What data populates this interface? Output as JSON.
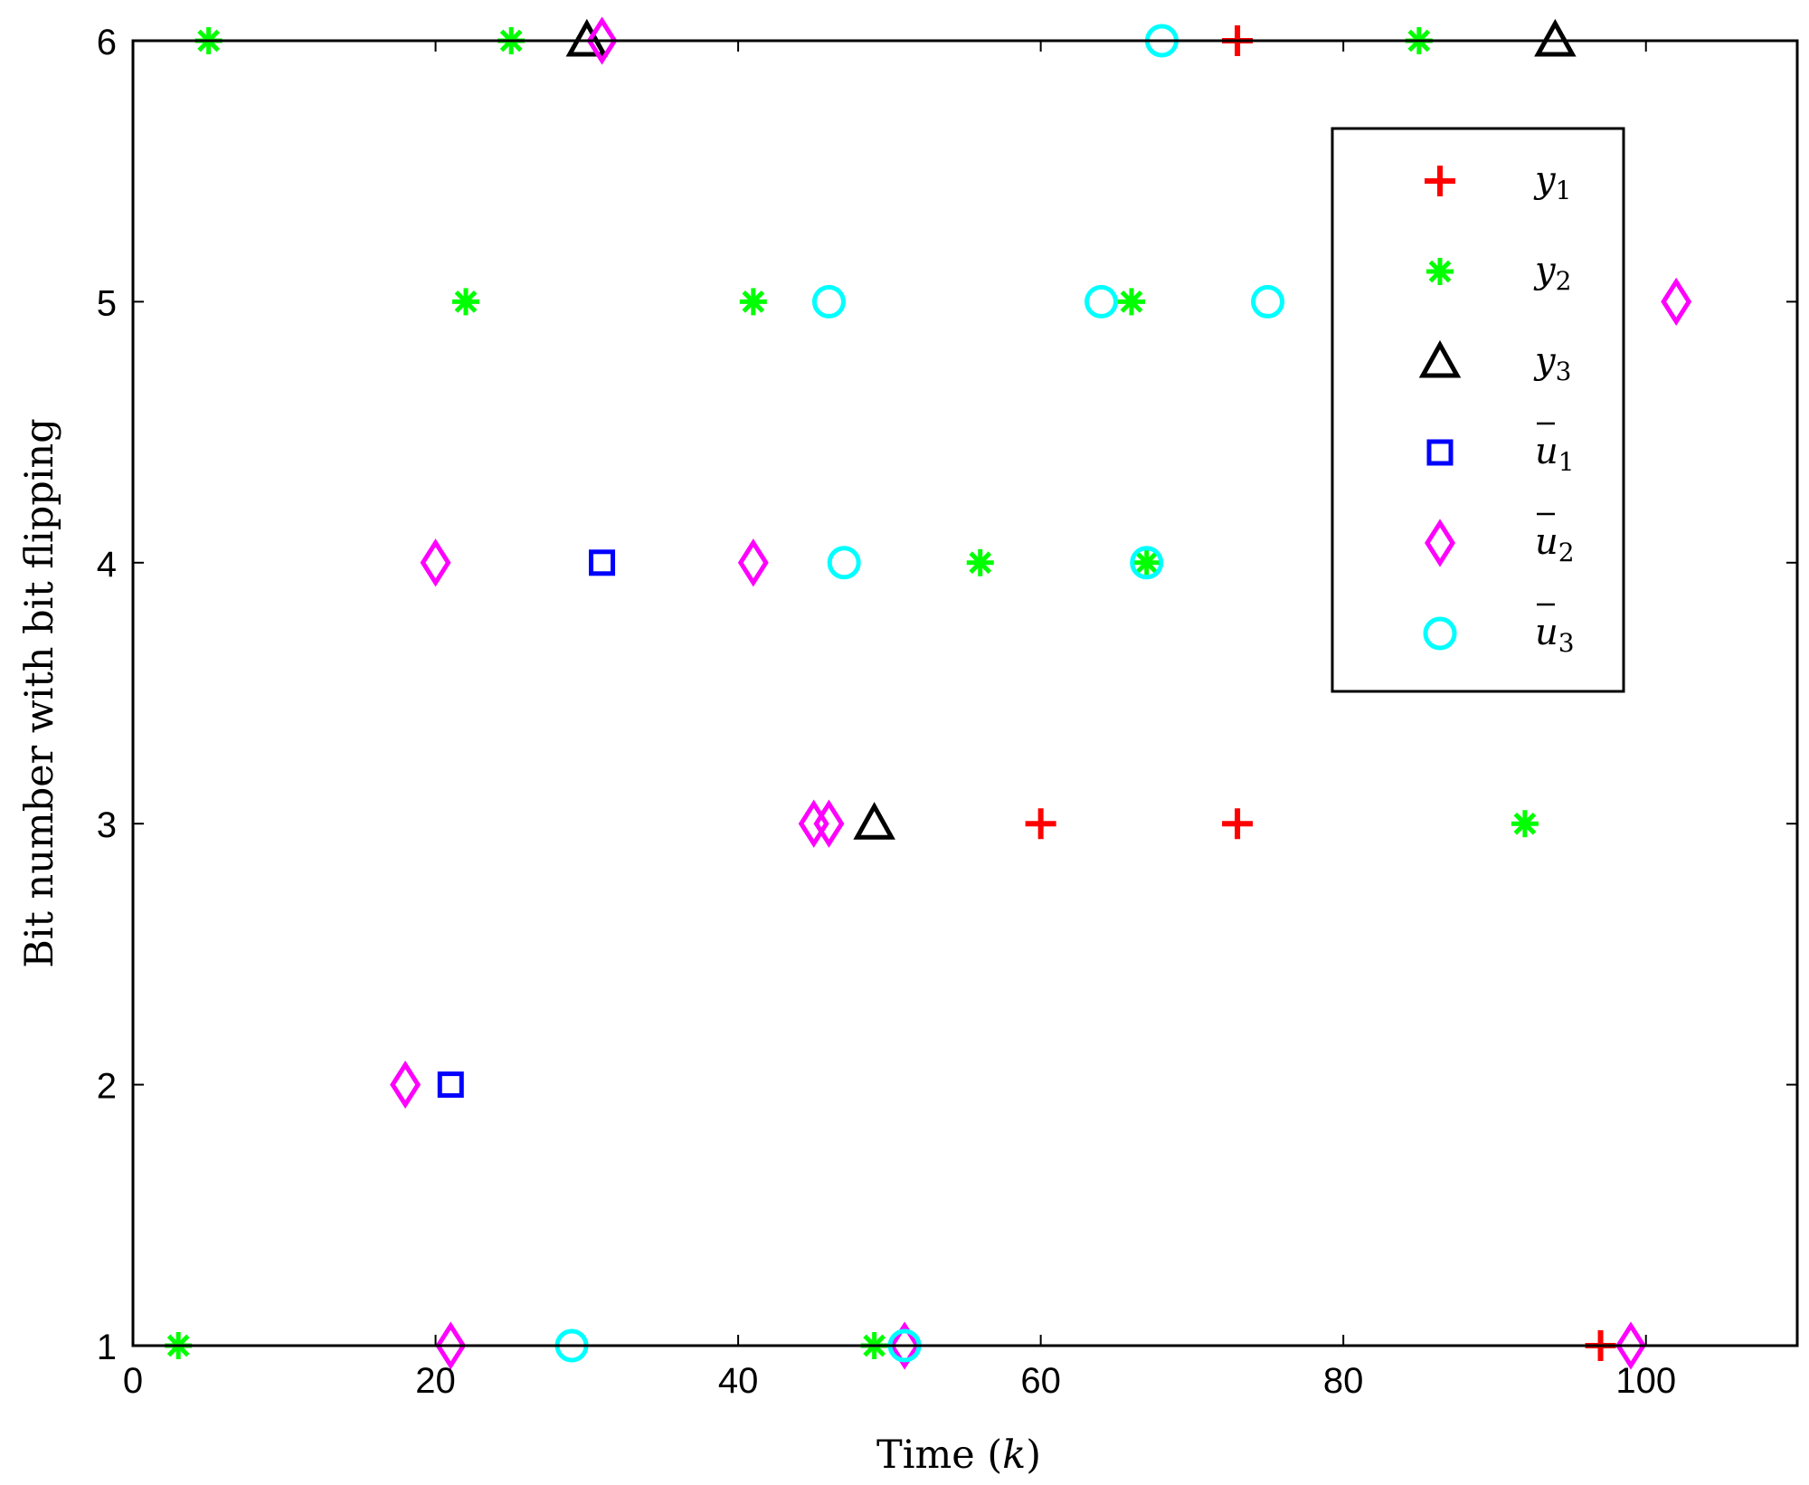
{
  "chart_data": {
    "type": "scatter",
    "xlabel": "Time",
    "xlabel_var": "k",
    "ylabel": "Bit number with bit flipping",
    "xlim": [
      0,
      110
    ],
    "ylim": [
      1,
      6
    ],
    "x_ticks": [
      0,
      20,
      40,
      60,
      80,
      100
    ],
    "y_ticks": [
      1,
      2,
      3,
      4,
      5,
      6
    ],
    "grid": false,
    "legend_position": "top-right",
    "series": [
      {
        "name": "y1",
        "label_main": "y",
        "label_sub": "1",
        "bar": false,
        "marker": "plus",
        "color": "#ff0000",
        "points": [
          [
            73,
            6
          ],
          [
            60,
            3
          ],
          [
            73,
            3
          ],
          [
            97,
            1
          ]
        ]
      },
      {
        "name": "y2",
        "label_main": "y",
        "label_sub": "2",
        "bar": false,
        "marker": "asterisk",
        "color": "#00ff00",
        "points": [
          [
            5,
            6
          ],
          [
            25,
            6
          ],
          [
            85,
            6
          ],
          [
            22,
            5
          ],
          [
            41,
            5
          ],
          [
            66,
            5
          ],
          [
            56,
            4
          ],
          [
            67,
            4
          ],
          [
            92,
            3
          ],
          [
            3,
            1
          ],
          [
            49,
            1
          ]
        ]
      },
      {
        "name": "y3",
        "label_main": "y",
        "label_sub": "3",
        "bar": false,
        "marker": "triangle",
        "color": "#000000",
        "points": [
          [
            30,
            6
          ],
          [
            94,
            6
          ],
          [
            49,
            3
          ]
        ]
      },
      {
        "name": "u1",
        "label_main": "u",
        "label_sub": "1",
        "bar": true,
        "marker": "square",
        "color": "#0000ff",
        "points": [
          [
            31,
            4
          ],
          [
            21,
            2
          ]
        ]
      },
      {
        "name": "u2",
        "label_main": "u",
        "label_sub": "2",
        "bar": true,
        "marker": "diamond",
        "color": "#ff00ff",
        "points": [
          [
            31,
            6
          ],
          [
            102,
            5
          ],
          [
            20,
            4
          ],
          [
            41,
            4
          ],
          [
            45,
            3
          ],
          [
            46,
            3
          ],
          [
            18,
            2
          ],
          [
            21,
            1
          ],
          [
            51,
            1
          ],
          [
            99,
            1
          ]
        ]
      },
      {
        "name": "u3",
        "label_main": "u",
        "label_sub": "3",
        "bar": true,
        "marker": "circle",
        "color": "#00ffff",
        "points": [
          [
            68,
            6
          ],
          [
            46,
            5
          ],
          [
            64,
            5
          ],
          [
            75,
            5
          ],
          [
            47,
            4
          ],
          [
            67,
            4
          ],
          [
            29,
            1
          ],
          [
            51,
            1
          ]
        ]
      }
    ]
  }
}
